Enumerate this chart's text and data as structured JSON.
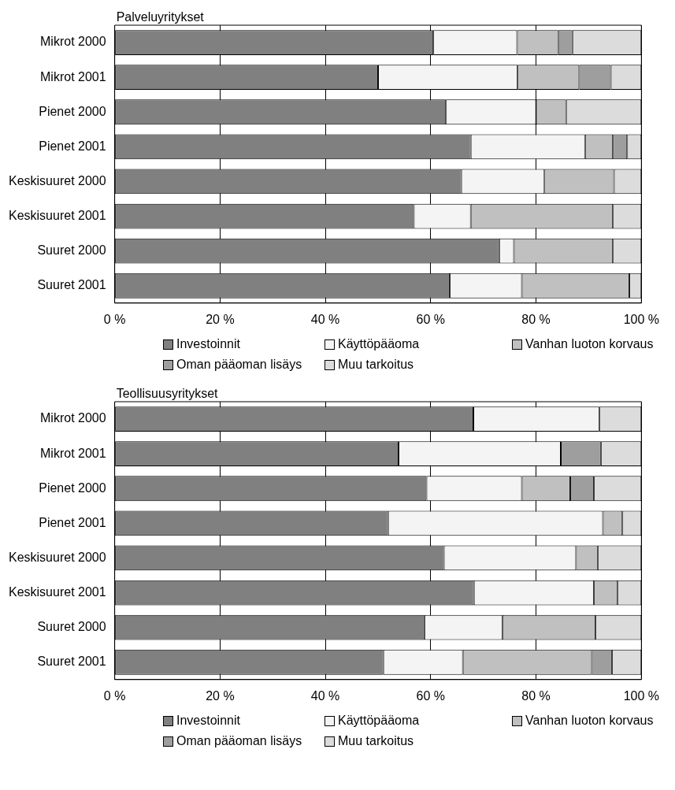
{
  "chart_data": [
    {
      "type": "bar",
      "title": "Palveluyritykset",
      "orientation": "horizontal",
      "stacked": true,
      "grid": "x",
      "legend": "bottom",
      "categories": [
        "Mikrot 2000",
        "Mikrot 2001",
        "Pienet 2000",
        "Pienet 2001",
        "Keskisuuret 2000",
        "Keskisuuret 2001",
        "Suuret 2000",
        "Suuret 2001"
      ],
      "xlim": [
        0,
        100
      ],
      "xticks": [
        {
          "value": 0,
          "label": "0 %"
        },
        {
          "value": 20,
          "label": "20 %"
        },
        {
          "value": 40,
          "label": "40 %"
        },
        {
          "value": 60,
          "label": "60 %"
        },
        {
          "value": 80,
          "label": "80 %"
        },
        {
          "value": 100,
          "label": "100 %"
        }
      ],
      "series": [
        {
          "name": "Investoinnit",
          "color": "#808080",
          "values": [
            60.5,
            50.0,
            62.9,
            67.6,
            65.8,
            56.8,
            73.0,
            63.6
          ]
        },
        {
          "name": "Käyttöpääoma",
          "color": "#f4f4f4",
          "values": [
            15.9,
            26.5,
            17.1,
            21.7,
            15.8,
            10.8,
            2.8,
            13.7
          ]
        },
        {
          "name": "Vanhan luoton korvaus",
          "color": "#c0c0c0",
          "values": [
            7.8,
            11.7,
            5.7,
            5.3,
            13.2,
            27.0,
            18.8,
            20.4
          ]
        },
        {
          "name": "Oman pääoman lisäys",
          "color": "#9e9e9e",
          "values": [
            2.7,
            6.0,
            0,
            2.7,
            0,
            0,
            0,
            0
          ]
        },
        {
          "name": "Muu tarkoitus",
          "color": "#dcdcdc",
          "values": [
            13.1,
            5.8,
            14.3,
            2.7,
            5.2,
            5.4,
            5.4,
            2.3
          ]
        }
      ]
    },
    {
      "type": "bar",
      "title": "Teollisuusyritykset",
      "orientation": "horizontal",
      "stacked": true,
      "grid": "x",
      "legend": "bottom",
      "categories": [
        "Mikrot 2000",
        "Mikrot 2001",
        "Pienet 2000",
        "Pienet 2001",
        "Keskisuuret 2000",
        "Keskisuuret 2001",
        "Suuret 2000",
        "Suuret 2001"
      ],
      "xlim": [
        0,
        100
      ],
      "xticks": [
        {
          "value": 0,
          "label": "0 %"
        },
        {
          "value": 20,
          "label": "20 %"
        },
        {
          "value": 40,
          "label": "40 %"
        },
        {
          "value": 60,
          "label": "60 %"
        },
        {
          "value": 80,
          "label": "80 %"
        },
        {
          "value": 100,
          "label": "100 %"
        }
      ],
      "series": [
        {
          "name": "Investoinnit",
          "color": "#808080",
          "values": [
            68.1,
            53.9,
            59.2,
            51.9,
            62.5,
            68.2,
            58.8,
            51.0
          ]
        },
        {
          "name": "Käyttöpääoma",
          "color": "#f4f4f4",
          "values": [
            23.9,
            30.8,
            18.1,
            40.8,
            25.1,
            22.8,
            14.8,
            15.1
          ]
        },
        {
          "name": "Vanhan luoton korvaus",
          "color": "#c0c0c0",
          "values": [
            0,
            0,
            9.2,
            3.7,
            4.1,
            4.5,
            17.7,
            24.5
          ]
        },
        {
          "name": "Oman pääoman lisäys",
          "color": "#9e9e9e",
          "values": [
            0,
            7.6,
            4.5,
            0,
            0,
            0,
            0,
            3.8
          ]
        },
        {
          "name": "Muu tarkoitus",
          "color": "#dcdcdc",
          "values": [
            8.0,
            7.7,
            9.0,
            3.6,
            8.3,
            4.5,
            8.7,
            5.6
          ]
        }
      ]
    }
  ]
}
